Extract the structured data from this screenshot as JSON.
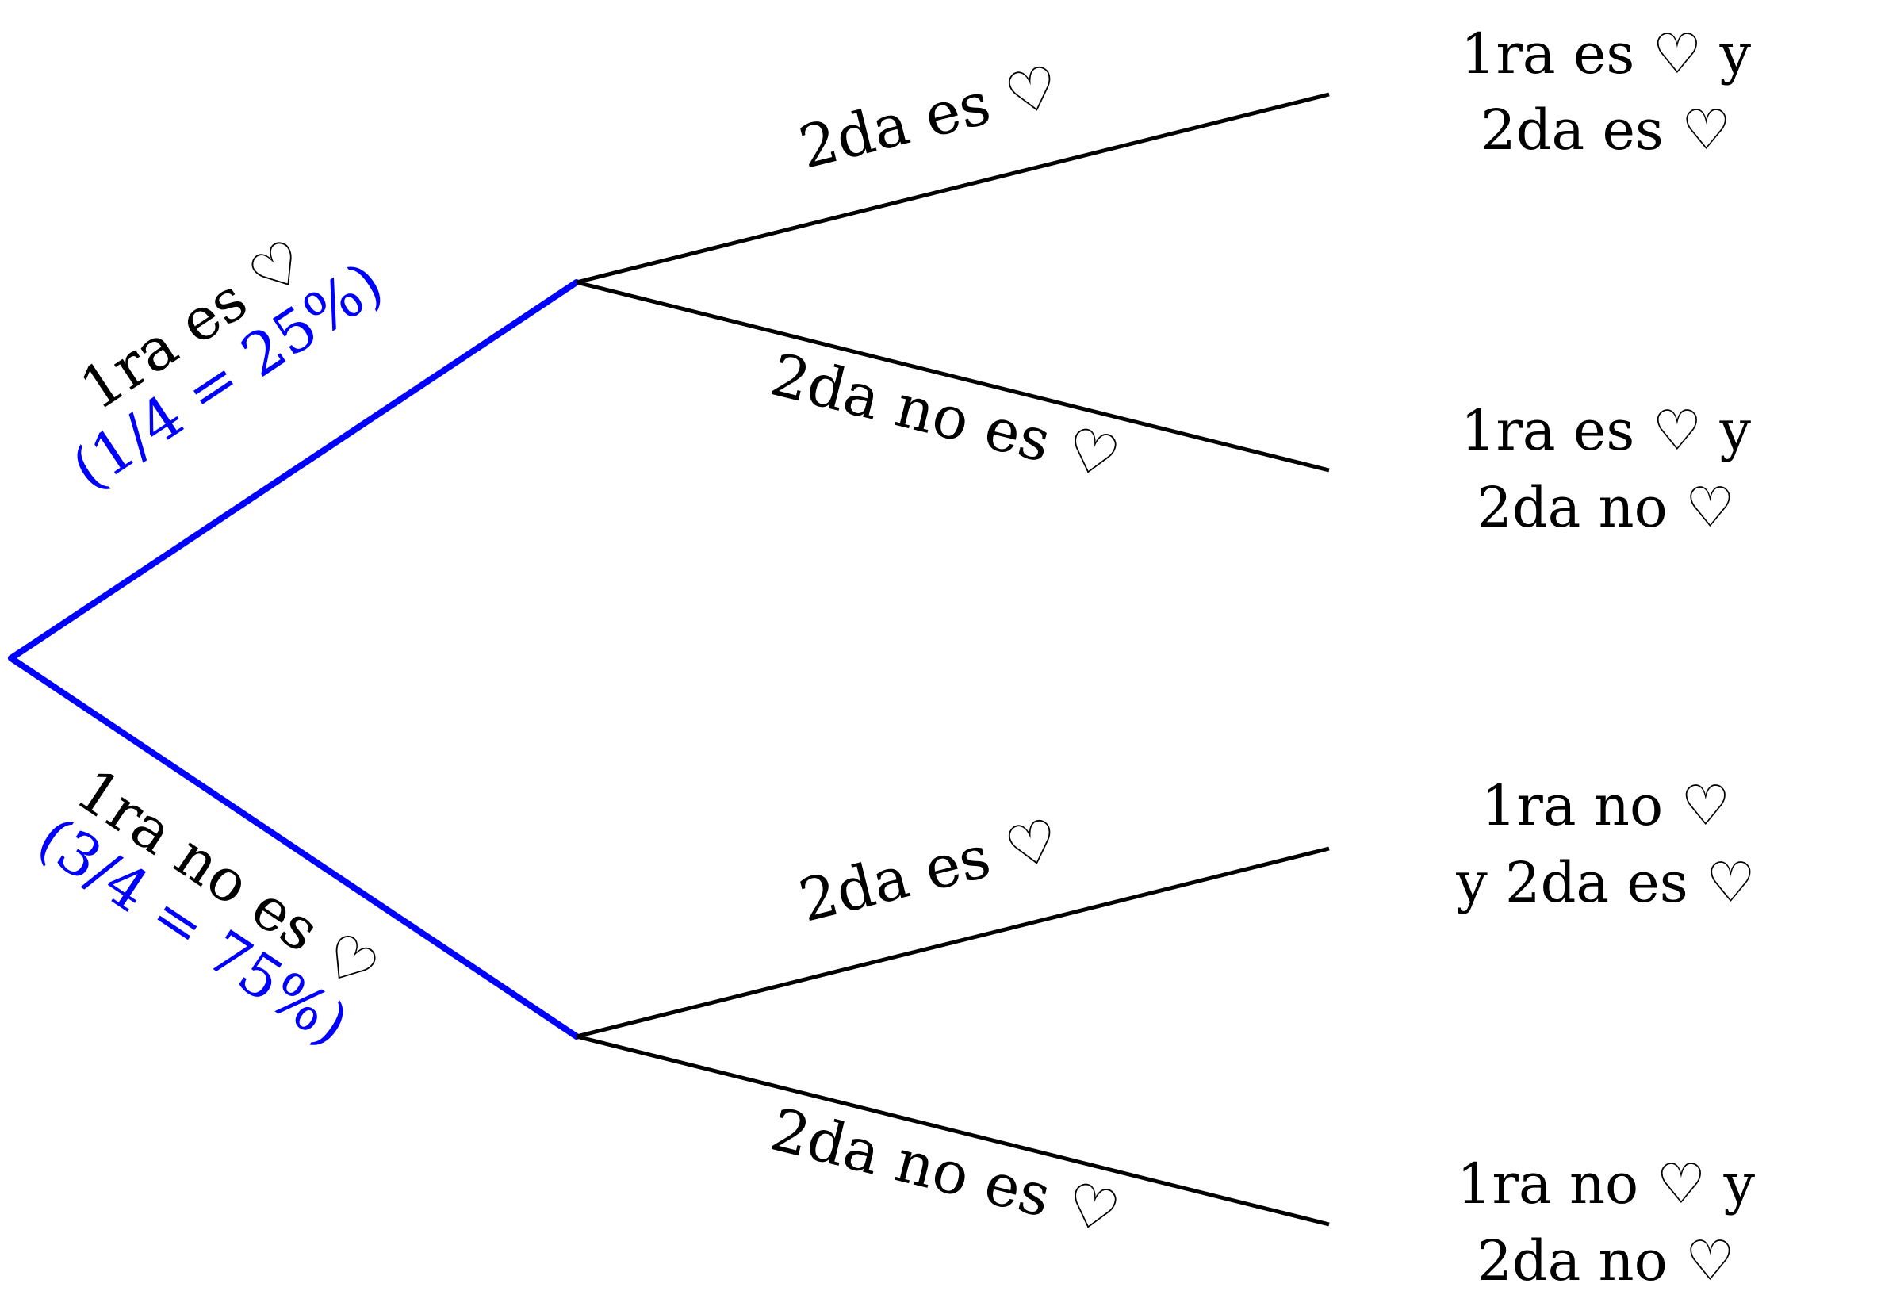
{
  "diagram": {
    "title": "",
    "colors": {
      "first_level": "#0000ff",
      "second_level": "#000000",
      "probability_text": "#0000ff"
    },
    "first_branches": {
      "heart": {
        "label": "1ra es ♡",
        "probability": "(1/4 = 25%)"
      },
      "no_heart": {
        "label": "1ra no es ♡",
        "probability": "(3/4 = 75%)"
      }
    },
    "second_branches": {
      "after_heart": {
        "heart": {
          "label": "2da es ♡"
        },
        "no_heart": {
          "label": "2da no es ♡"
        }
      },
      "after_no_heart": {
        "heart": {
          "label": "2da es ♡"
        },
        "no_heart": {
          "label": "2da no es ♡"
        }
      }
    },
    "outcomes": [
      {
        "line1": "1ra es ♡ y",
        "line2": "2da es ♡"
      },
      {
        "line1": "1ra es ♡ y",
        "line2": "2da no ♡"
      },
      {
        "line1": "1ra no ♡",
        "line2": "y 2da es ♡"
      },
      {
        "line1": "1ra no ♡ y",
        "line2": "2da no ♡"
      }
    ]
  }
}
